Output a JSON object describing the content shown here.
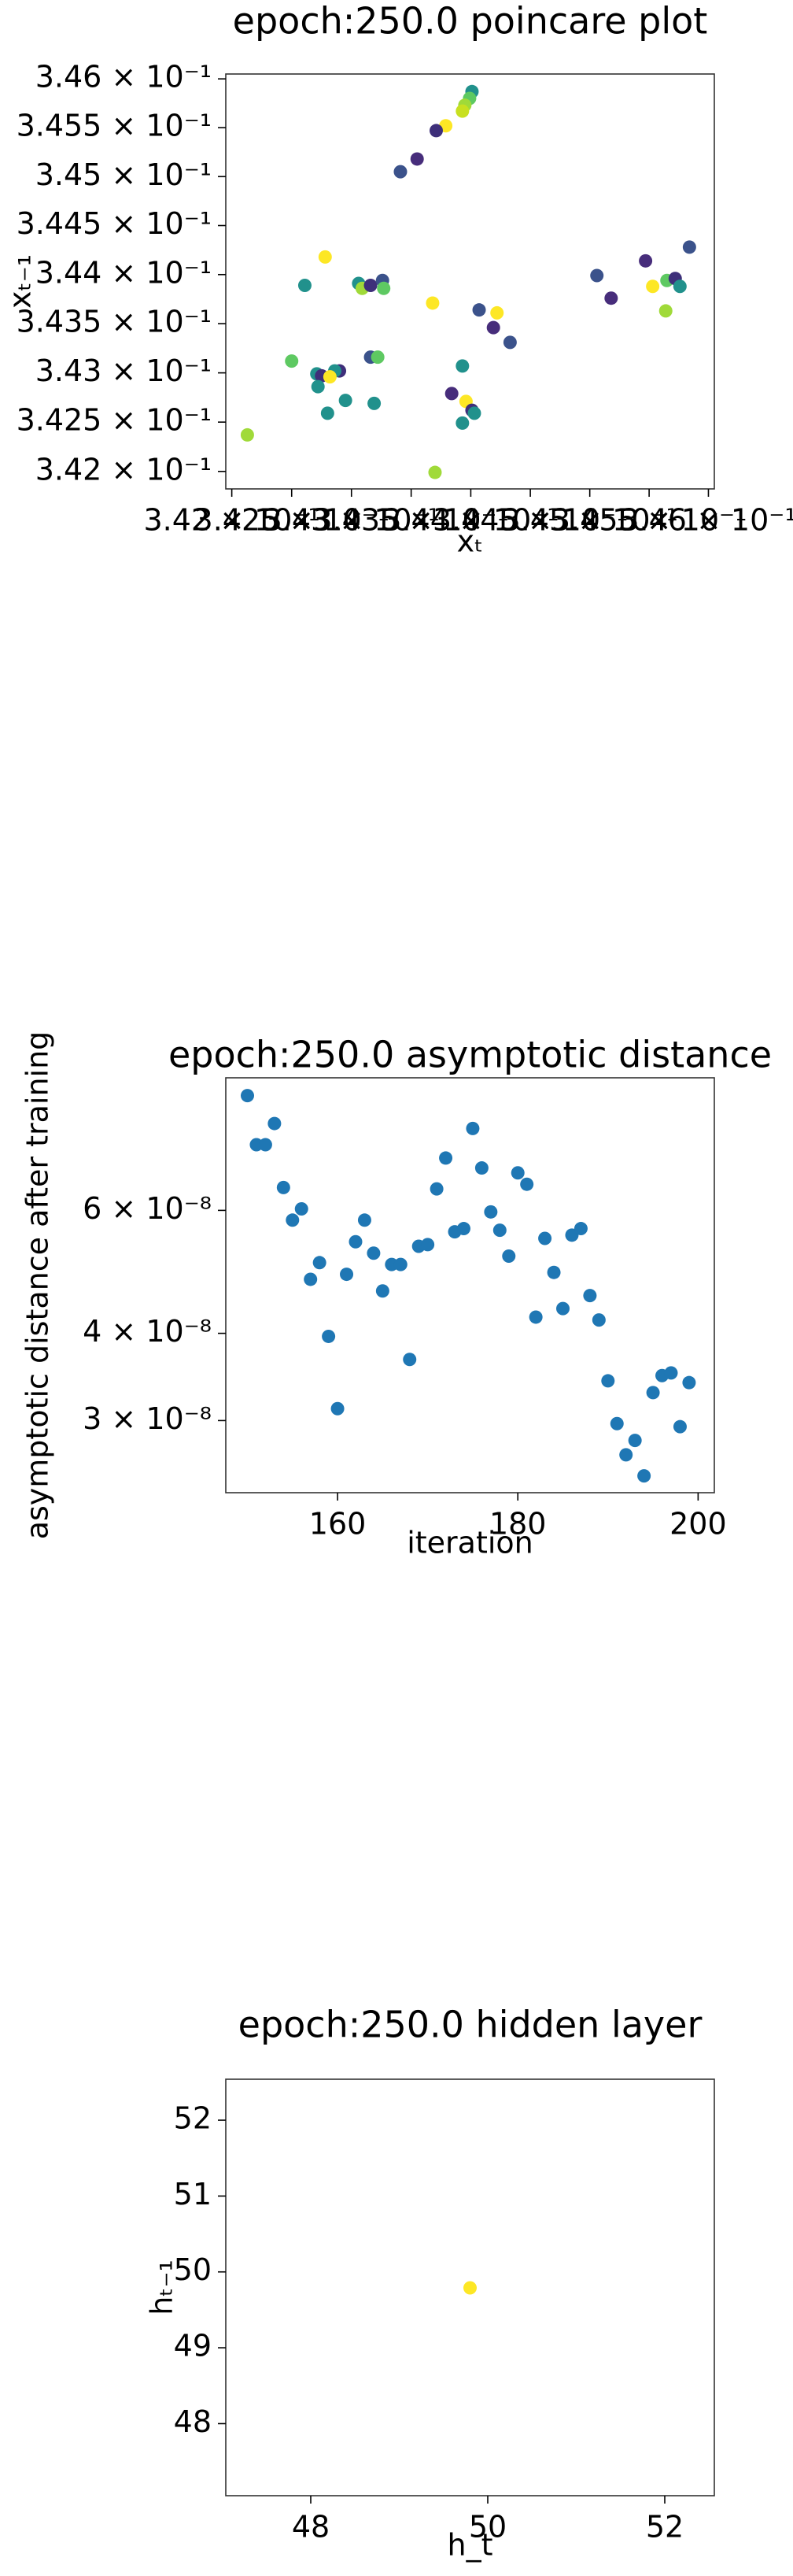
{
  "chart_data": [
    {
      "type": "scatter",
      "title": "epoch:250.0 poincare plot",
      "xlabel": "xₜ",
      "ylabel": "xₜ₋₁",
      "xscale": "log",
      "yscale": "log",
      "x": [
        0.34401,
        0.34399,
        0.34395,
        0.34393,
        0.34379,
        0.34371,
        0.34355,
        0.34341,
        0.34261,
        0.34278,
        0.34306,
        0.34309,
        0.34316,
        0.34326,
        0.34327,
        0.34368,
        0.34407,
        0.34422,
        0.34419,
        0.34433,
        0.34506,
        0.34518,
        0.34547,
        0.34553,
        0.34565,
        0.34572,
        0.34576,
        0.34584,
        0.34564,
        0.3425,
        0.34271,
        0.3429,
        0.34286,
        0.34275,
        0.34282,
        0.34272,
        0.34295,
        0.34316,
        0.34322,
        0.34319,
        0.3428,
        0.34393,
        0.34384,
        0.34396,
        0.34401,
        0.34403,
        0.34393,
        0.3437,
        0.34213
      ],
      "values": [
        0.34587,
        0.3458,
        0.34573,
        0.34567,
        0.34552,
        0.34547,
        0.34518,
        0.34505,
        0.34389,
        0.34418,
        0.34391,
        0.34386,
        0.34389,
        0.34394,
        0.34386,
        0.34371,
        0.34364,
        0.34361,
        0.34346,
        0.34331,
        0.34399,
        0.34376,
        0.34414,
        0.34388,
        0.34394,
        0.34396,
        0.34388,
        0.34428,
        0.34363,
        0.34312,
        0.34299,
        0.34302,
        0.34302,
        0.34297,
        0.34296,
        0.34286,
        0.34272,
        0.34316,
        0.34316,
        0.34269,
        0.34259,
        0.34307,
        0.34279,
        0.34271,
        0.34262,
        0.34259,
        0.34249,
        0.34199,
        0.34237
      ],
      "colors": [
        "#21918c",
        "#5ec962",
        "#a0da39",
        "#c8e020",
        "#fde725",
        "#3e2f7a",
        "#472d7b",
        "#3b528b",
        "#21918c",
        "#fde725",
        "#21918c",
        "#a0da39",
        "#3e2f7a",
        "#3b528b",
        "#5ec962",
        "#fde725",
        "#3b528b",
        "#fde725",
        "#472d7b",
        "#3b528b",
        "#3b528b",
        "#472d7b",
        "#472d7b",
        "#fde725",
        "#5ec962",
        "#3e2f7a",
        "#21918c",
        "#3b528b",
        "#a0da39",
        "#5ec962",
        "#21918c",
        "#3e2f7a",
        "#21918c",
        "#3e2f7a",
        "#fde725",
        "#21918c",
        "#21918c",
        "#3b528b",
        "#5ec962",
        "#21918c",
        "#21918c",
        "#21918c",
        "#472d7b",
        "#fde725",
        "#3e2f7a",
        "#21918c",
        "#21918c",
        "#a0da39",
        "#a0da39"
      ],
      "xlim": [
        0.34195,
        0.34605
      ],
      "ylim": [
        0.341823,
        0.34605
      ],
      "xticks": [
        {
          "value": 0.342,
          "label": "3.42 × 10⁻¹"
        },
        {
          "value": 0.3425,
          "label": "3.425 × 10⁻¹"
        },
        {
          "value": 0.343,
          "label": "3.43 × 10⁻¹"
        },
        {
          "value": 0.3435,
          "label": "3.435 × 10⁻¹"
        },
        {
          "value": 0.344,
          "label": "3.44 × 10⁻¹"
        },
        {
          "value": 0.3445,
          "label": "3.445 × 10⁻¹"
        },
        {
          "value": 0.345,
          "label": "3.45 × 10⁻¹"
        },
        {
          "value": 0.3455,
          "label": "3.455 × 10⁻¹"
        },
        {
          "value": 0.346,
          "label": "3.46 × 10⁻¹"
        }
      ],
      "yticks": [
        {
          "value": 0.342,
          "label": "3.42 × 10⁻¹"
        },
        {
          "value": 0.3425,
          "label": "3.425 × 10⁻¹"
        },
        {
          "value": 0.343,
          "label": "3.43 × 10⁻¹"
        },
        {
          "value": 0.3435,
          "label": "3.435 × 10⁻¹"
        },
        {
          "value": 0.344,
          "label": "3.44 × 10⁻¹"
        },
        {
          "value": 0.3445,
          "label": "3.445 × 10⁻¹"
        },
        {
          "value": 0.345,
          "label": "3.45 × 10⁻¹"
        },
        {
          "value": 0.3455,
          "label": "3.455 × 10⁻¹"
        },
        {
          "value": 0.346,
          "label": "3.46 × 10⁻¹"
        }
      ]
    },
    {
      "type": "scatter",
      "title": "epoch:250.0 asymptotic distance",
      "xlabel": "iteration",
      "ylabel": "asymptotic distance after training",
      "yscale": "log",
      "color": "#1f77b4",
      "x": [
        150,
        151,
        152,
        153,
        154,
        155,
        156,
        157,
        158,
        159,
        160,
        161,
        162,
        163,
        164,
        165,
        166,
        167,
        168,
        169,
        170,
        171,
        172,
        173,
        174,
        175,
        176,
        177,
        178,
        179,
        180,
        181,
        182,
        183,
        184,
        185,
        186,
        187,
        188,
        189,
        190,
        191,
        192,
        193,
        194,
        195,
        196,
        197,
        198,
        199
      ],
      "values": [
        8.76e-08,
        7.45e-08,
        7.45e-08,
        7.99e-08,
        6.47e-08,
        5.81e-08,
        6.03e-08,
        4.78e-08,
        5.05e-08,
        3.96e-08,
        3.12e-08,
        4.86e-08,
        5.41e-08,
        5.81e-08,
        5.21e-08,
        4.6e-08,
        5.02e-08,
        5.02e-08,
        3.67e-08,
        5.33e-08,
        5.36e-08,
        6.44e-08,
        7.13e-08,
        5.59e-08,
        5.65e-08,
        7.86e-08,
        6.9e-08,
        5.97e-08,
        5.62e-08,
        5.16e-08,
        6.79e-08,
        6.54e-08,
        4.22e-08,
        5.47e-08,
        4.89e-08,
        4.34e-08,
        5.53e-08,
        5.65e-08,
        4.53e-08,
        4.18e-08,
        3.42e-08,
        2.97e-08,
        2.68e-08,
        2.81e-08,
        2.5e-08,
        3.29e-08,
        3.48e-08,
        3.51e-08,
        2.94e-08,
        3.4e-08
      ],
      "xlim": [
        147.6,
        201.8
      ],
      "ylim": [
        2.365e-08,
        9.29e-08
      ],
      "xticks": [
        160,
        180,
        200
      ],
      "yticks": [
        {
          "value": 3e-08,
          "label": "3 × 10⁻⁸"
        },
        {
          "value": 4e-08,
          "label": "4 × 10⁻⁸"
        },
        {
          "value": 6e-08,
          "label": "6 × 10⁻⁸"
        }
      ]
    },
    {
      "type": "scatter",
      "title": "epoch:250.0 hidden layer",
      "xlabel": "h_t",
      "ylabel": "hₜ₋₁",
      "color": "#fde725",
      "x": [
        49.8
      ],
      "values": [
        49.79
      ],
      "xlim": [
        47.04,
        52.56
      ],
      "ylim": [
        47.05,
        52.54
      ],
      "xticks": [
        48,
        50,
        52
      ],
      "yticks": [
        48,
        49,
        50,
        51,
        52
      ]
    }
  ]
}
